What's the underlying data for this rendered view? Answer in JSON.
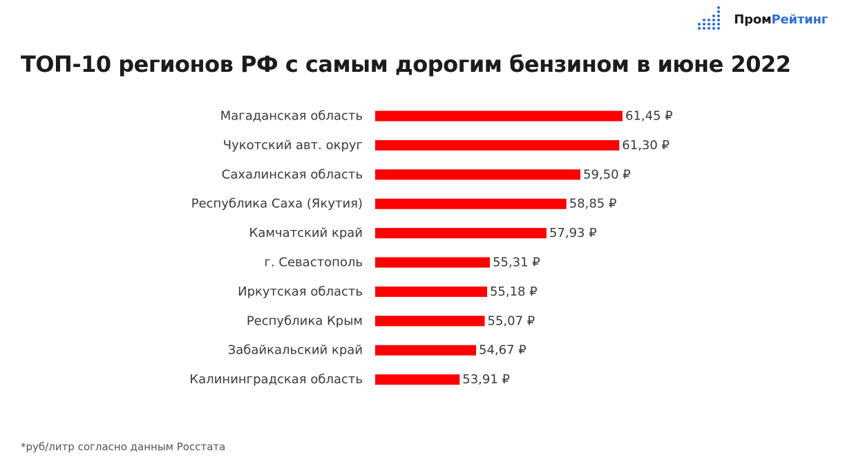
{
  "brand": {
    "name_part1": "Пром",
    "name_part2": "Рейтинг",
    "color_dark": "#1a1a1a",
    "color_blue": "#2e6fd8",
    "icon": "bars-dots-logo-icon"
  },
  "footnote": "*руб/литр согласно данным Росстата",
  "chart_data": {
    "type": "bar",
    "orientation": "horizontal",
    "title": "ТОП-10 регионов РФ с самым дорогим бензином в июне 2022",
    "categories": [
      "Магаданская область",
      "Чукотский авт. округ",
      "Сахалинская область",
      "Республика Саха (Якутия)",
      "Камчатский край",
      "г. Севастополь",
      "Иркутская область",
      "Республика Крым",
      "Забайкальский край",
      "Калининградская область"
    ],
    "values": [
      61.45,
      61.3,
      59.5,
      58.85,
      57.93,
      55.31,
      55.18,
      55.07,
      54.67,
      53.91
    ],
    "value_labels": [
      "61,45 ₽",
      "61,30 ₽",
      "59,50 ₽",
      "58,85 ₽",
      "57,93 ₽",
      "55,31 ₽",
      "55,18 ₽",
      "55,07 ₽",
      "54,67 ₽",
      "53,91 ₽"
    ],
    "xlim": [
      50,
      61.45
    ],
    "bar_color": "#ff0000",
    "grid": false,
    "legend": "none",
    "xlabel": "",
    "ylabel": ""
  }
}
